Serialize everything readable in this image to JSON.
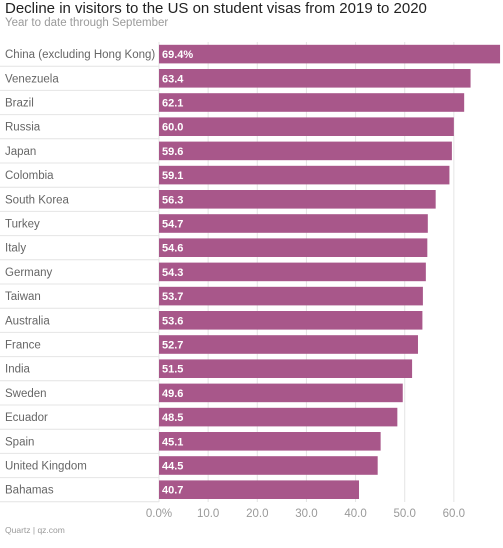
{
  "chart_data": {
    "type": "bar",
    "orientation": "horizontal",
    "title": "Decline in visitors to the US on student visas from 2019 to 2020",
    "subtitle": "Year to date through September",
    "source": "Quartz | qz.com",
    "categories": [
      "China (excluding Hong Kong)",
      "Venezuela",
      "Brazil",
      "Russia",
      "Japan",
      "Colombia",
      "South Korea",
      "Turkey",
      "Italy",
      "Germany",
      "Taiwan",
      "Australia",
      "France",
      "India",
      "Sweden",
      "Ecuador",
      "Spain",
      "United Kingdom",
      "Bahamas"
    ],
    "values": [
      69.4,
      63.4,
      62.1,
      60.0,
      59.6,
      59.1,
      56.3,
      54.7,
      54.6,
      54.3,
      53.7,
      53.6,
      52.7,
      51.5,
      49.6,
      48.5,
      45.1,
      44.5,
      40.7
    ],
    "value_labels": [
      "69.4%",
      "63.4",
      "62.1",
      "60.0",
      "59.6",
      "59.1",
      "56.3",
      "54.7",
      "54.6",
      "54.3",
      "53.7",
      "53.6",
      "52.7",
      "51.5",
      "49.6",
      "48.5",
      "45.1",
      "44.5",
      "40.7"
    ],
    "x_ticks": [
      0,
      10,
      20,
      30,
      40,
      50,
      60
    ],
    "x_tick_labels": [
      "0.0%",
      "10.0",
      "20.0",
      "30.0",
      "40.0",
      "50.0",
      "60.0"
    ],
    "xlim": [
      0,
      70
    ],
    "grid": true,
    "colors": {
      "bar": "#a8578a",
      "grid": "#e4e4e4",
      "text": "#666666"
    }
  }
}
